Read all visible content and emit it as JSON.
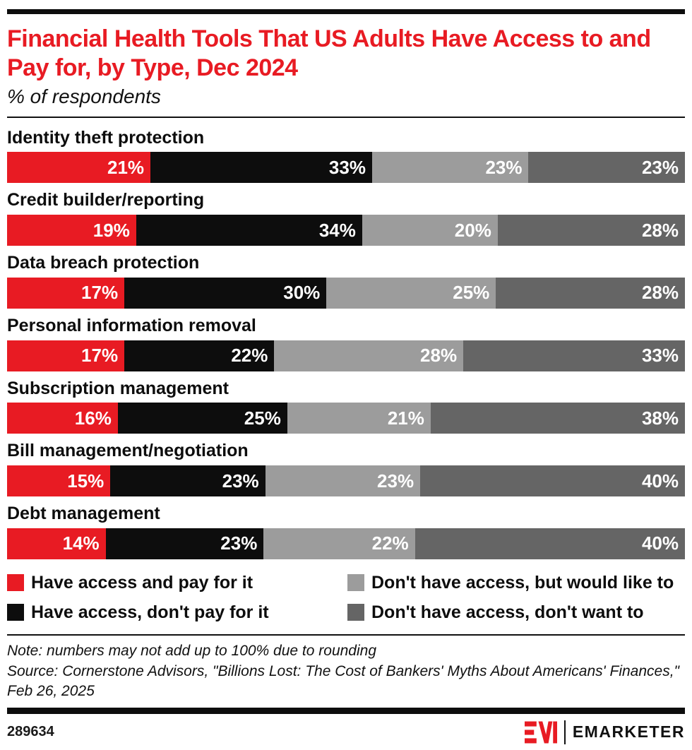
{
  "header": {
    "title": "Financial Health Tools That US Adults Have Access to and Pay for, by Type, Dec 2024",
    "subtitle": "% of respondents"
  },
  "colors": {
    "accent_red": "#e81b23",
    "black": "#0d0d0d",
    "light_gray": "#9c9c9c",
    "dark_gray": "#656565"
  },
  "chart_data": {
    "type": "bar",
    "stacked": true,
    "orientation": "horizontal",
    "value_unit": "%",
    "title": "Financial Health Tools That US Adults Have Access to and Pay for, by Type, Dec 2024",
    "subtitle": "% of respondents",
    "categories": [
      "Identity theft protection",
      "Credit builder/reporting",
      "Data breach protection",
      "Personal information removal",
      "Subscription management",
      "Bill management/negotiation",
      "Debt management"
    ],
    "series": [
      {
        "name": "Have access and pay for it",
        "color": "#e81b23",
        "values": [
          21,
          19,
          17,
          17,
          16,
          15,
          14
        ]
      },
      {
        "name": "Have access, don't pay for it",
        "color": "#0d0d0d",
        "values": [
          33,
          34,
          30,
          22,
          25,
          23,
          23
        ]
      },
      {
        "name": "Don't have access, but would like to",
        "color": "#9c9c9c",
        "values": [
          23,
          20,
          25,
          28,
          21,
          23,
          22
        ]
      },
      {
        "name": "Don't have access, don't want to",
        "color": "#656565",
        "values": [
          23,
          28,
          28,
          33,
          38,
          40,
          40
        ]
      }
    ],
    "legend_position": "bottom"
  },
  "legend": {
    "items": [
      {
        "label": "Have access and pay for it",
        "color": "#e81b23"
      },
      {
        "label": "Don't have access, but would like to",
        "color": "#9c9c9c"
      },
      {
        "label": "Have access, don't pay for it",
        "color": "#0d0d0d"
      },
      {
        "label": "Don't have access, don't want to",
        "color": "#656565"
      }
    ]
  },
  "footer": {
    "note": "Note: numbers may not add up to 100% due to rounding",
    "source": "Source: Cornerstone Advisors, \"Billions Lost: The Cost of Bankers' Myths About Americans' Finances,\" Feb 26, 2025",
    "chart_id": "289634",
    "brand": "EMARKETER"
  }
}
